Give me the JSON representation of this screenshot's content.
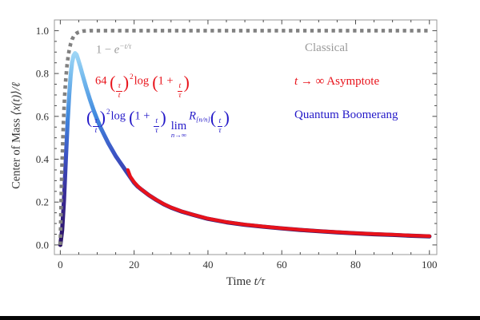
{
  "colors": {
    "gray_text": "#9a9a9a",
    "red": "#e8121a",
    "blue": "#2318c8",
    "dotted_gray": "#818181",
    "frame": "#999999",
    "tick": "#4a4a4a",
    "label_dark": "#333333",
    "bottom_bar": "#060606"
  },
  "axes": {
    "x_label": {
      "prefix": "Time ",
      "math": "t/τ"
    },
    "y_label": {
      "prefix": "Center of Mass ",
      "math": "⟨x(t)⟩/ℓ"
    },
    "x_ticks": {
      "values": [
        0,
        20,
        40,
        60,
        80,
        100
      ],
      "labels": [
        "0",
        "20",
        "40",
        "60",
        "80",
        "100"
      ],
      "minor_step": 5
    },
    "y_ticks": {
      "values": [
        0,
        0.2,
        0.4,
        0.6,
        0.8,
        1.0
      ],
      "labels": [
        "0.0",
        "0.2",
        "0.4",
        "0.6",
        "0.8",
        "1.0"
      ],
      "minor_step": 0.05
    },
    "x_range": [
      -1.6,
      102
    ],
    "y_range": [
      -0.045,
      1.05
    ]
  },
  "formulas": {
    "classical": {
      "pre": "1 − ",
      "e": "e",
      "sup": "−t/τ"
    },
    "asymptote": {
      "coef": "64 ",
      "lp": "(",
      "f1n": "τ",
      "f1d": "t",
      "rp": ")",
      "exp": "2",
      "log": "log",
      "lp2": "(",
      "oneplus": "1 + ",
      "f2n": "t",
      "f2d": "τ",
      "rp2": ")"
    },
    "quantum": {
      "lp": "(",
      "f1n": "τ",
      "f1d": "t",
      "rp": ")",
      "exp": "2",
      "log": "log",
      "lp2": "(",
      "oneplus": "1 + ",
      "f2n": "t",
      "f2d": "τ",
      "rp2": ")",
      "lim": "lim",
      "limsub": "n→∞",
      "R": "R",
      "Rsub": "[n/n]",
      "lp3": "(",
      "f3n": "t",
      "f3d": "τ",
      "rp3": ")"
    }
  },
  "legend": {
    "classical": {
      "text": "Classical"
    },
    "asymptote": {
      "it": "t",
      "text": " → ∞ Asymptote"
    },
    "quantum": {
      "text": "Quantum Boomerang"
    }
  },
  "chart_data": {
    "type": "line",
    "title": "",
    "xlabel": "Time t/τ",
    "ylabel": "Center of Mass ⟨x(t)⟩/ℓ",
    "xlim": [
      -1.6,
      102
    ],
    "ylim": [
      -0.045,
      1.05
    ],
    "grid": false,
    "legend_position": "inside top-right, text only",
    "series": [
      {
        "name": "Quantum Boomerang",
        "formula": "(τ/t)² log(1 + t/τ) lim_{n→∞} R_[n/n](t/τ)",
        "style": "gradient",
        "width": 5.2,
        "gradient": [
          {
            "offset": 0.0,
            "color": "#2a1164"
          },
          {
            "offset": 0.22,
            "color": "#38278f"
          },
          {
            "offset": 0.45,
            "color": "#3c53c4"
          },
          {
            "offset": 0.65,
            "color": "#418adf"
          },
          {
            "offset": 0.85,
            "color": "#79bdee"
          },
          {
            "offset": 1.0,
            "color": "#abdef8"
          }
        ],
        "points": [
          [
            0,
            0
          ],
          [
            0.5,
            0.07
          ],
          [
            1,
            0.21
          ],
          [
            1.5,
            0.4
          ],
          [
            2,
            0.58
          ],
          [
            2.4,
            0.7
          ],
          [
            2.8,
            0.79
          ],
          [
            3.2,
            0.852
          ],
          [
            3.6,
            0.884
          ],
          [
            4,
            0.895
          ],
          [
            4.4,
            0.888
          ],
          [
            4.8,
            0.868
          ],
          [
            5.4,
            0.833
          ],
          [
            6,
            0.795
          ],
          [
            7,
            0.735
          ],
          [
            8,
            0.68
          ],
          [
            9,
            0.63
          ],
          [
            10,
            0.585
          ],
          [
            11,
            0.545
          ],
          [
            12,
            0.51
          ],
          [
            13,
            0.475
          ],
          [
            14,
            0.445
          ],
          [
            15,
            0.415
          ],
          [
            16,
            0.39
          ],
          [
            17,
            0.365
          ],
          [
            18,
            0.34
          ],
          [
            19,
            0.315
          ],
          [
            20,
            0.29
          ],
          [
            21,
            0.272
          ],
          [
            22,
            0.258
          ],
          [
            24,
            0.232
          ],
          [
            26,
            0.21
          ],
          [
            28,
            0.19
          ],
          [
            30,
            0.174
          ],
          [
            33,
            0.155
          ],
          [
            36,
            0.14
          ],
          [
            40,
            0.122
          ],
          [
            45,
            0.106
          ],
          [
            50,
            0.094
          ],
          [
            55,
            0.085
          ],
          [
            60,
            0.077
          ],
          [
            65,
            0.07
          ],
          [
            70,
            0.064
          ],
          [
            75,
            0.059
          ],
          [
            80,
            0.054
          ],
          [
            85,
            0.05
          ],
          [
            90,
            0.047
          ],
          [
            95,
            0.043
          ],
          [
            100,
            0.04
          ]
        ]
      },
      {
        "name": "t → ∞ Asymptote",
        "formula": "64 (τ/t)² log(1 + t/τ)",
        "style": "solid",
        "color": "#e8121a",
        "width": 4.3,
        "points": [
          [
            18.3,
            0.35
          ],
          [
            19,
            0.318
          ],
          [
            20,
            0.293
          ],
          [
            21,
            0.274
          ],
          [
            22,
            0.259
          ],
          [
            24,
            0.233
          ],
          [
            26,
            0.211
          ],
          [
            28,
            0.191
          ],
          [
            30,
            0.175
          ],
          [
            33,
            0.156
          ],
          [
            36,
            0.141
          ],
          [
            40,
            0.123
          ],
          [
            45,
            0.107
          ],
          [
            50,
            0.095
          ],
          [
            55,
            0.086
          ],
          [
            60,
            0.078
          ],
          [
            65,
            0.071
          ],
          [
            70,
            0.065
          ],
          [
            75,
            0.06
          ],
          [
            80,
            0.055
          ],
          [
            85,
            0.051
          ],
          [
            90,
            0.048
          ],
          [
            95,
            0.044
          ],
          [
            100,
            0.041
          ]
        ]
      },
      {
        "name": "Classical",
        "formula": "1 − e^(−t/τ)",
        "style": "dotted",
        "color": "#818181",
        "width": 4.6,
        "points": [
          [
            0,
            0
          ],
          [
            0.2,
            0.18
          ],
          [
            0.4,
            0.33
          ],
          [
            0.6,
            0.45
          ],
          [
            0.8,
            0.55
          ],
          [
            1,
            0.632
          ],
          [
            1.2,
            0.7
          ],
          [
            1.5,
            0.777
          ],
          [
            1.8,
            0.835
          ],
          [
            2.1,
            0.878
          ],
          [
            2.4,
            0.909
          ],
          [
            2.8,
            0.939
          ],
          [
            3.2,
            0.959
          ],
          [
            3.6,
            0.973
          ],
          [
            4,
            0.982
          ],
          [
            4.5,
            0.989
          ],
          [
            5,
            0.993
          ],
          [
            6,
            0.998
          ],
          [
            7,
            0.999
          ],
          [
            8,
            1
          ],
          [
            100,
            1
          ]
        ]
      }
    ]
  }
}
